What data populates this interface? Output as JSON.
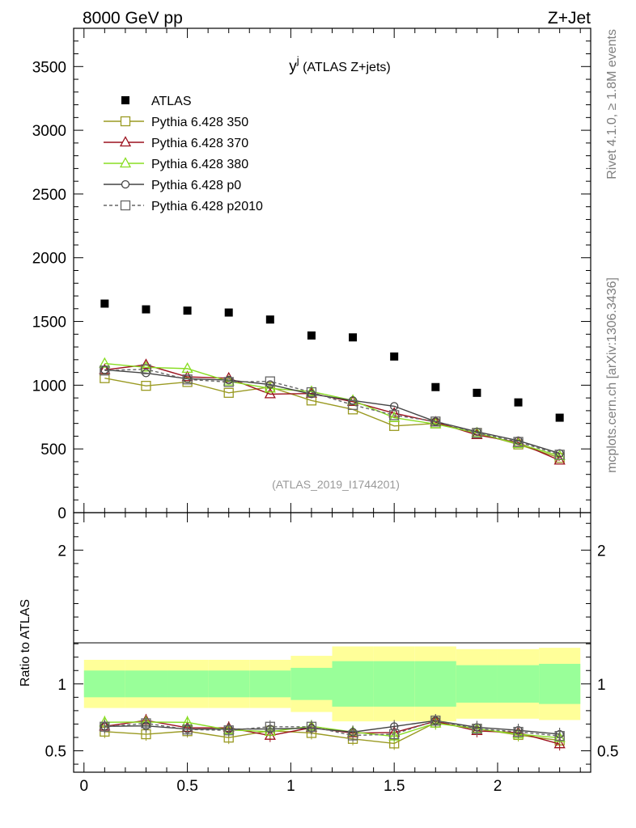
{
  "header": {
    "left": "8000 GeV pp",
    "right": "Z+Jet"
  },
  "side_labels": {
    "rivet": "Rivet 4.1.0, ≥ 1.8M events",
    "mcplots": "mcplots.cern.ch [arXiv:1306.3436]"
  },
  "chart_data": {
    "type": "scatter",
    "title_main": "y",
    "title_sup": "j",
    "title_suffix": " (ATLAS Z+jets)",
    "watermark": "(ATLAS_2019_I1744201)",
    "xlim": [
      -0.05,
      2.45
    ],
    "ylim": [
      0,
      3800
    ],
    "ratio_ylim": [
      0.34,
      2.28
    ],
    "ratio_ylabel": "Ratio to ATLAS",
    "x_ticks": [
      {
        "v": 0,
        "label": "0"
      },
      {
        "v": 0.5,
        "label": "0.5"
      },
      {
        "v": 1,
        "label": "1"
      },
      {
        "v": 1.5,
        "label": "1.5"
      },
      {
        "v": 2,
        "label": "2"
      }
    ],
    "y_ticks": [
      {
        "v": 0,
        "label": "0"
      },
      {
        "v": 500,
        "label": "500"
      },
      {
        "v": 1000,
        "label": "1000"
      },
      {
        "v": 1500,
        "label": "1500"
      },
      {
        "v": 2000,
        "label": "2000"
      },
      {
        "v": 2500,
        "label": "2500"
      },
      {
        "v": 3000,
        "label": "3000"
      },
      {
        "v": 3500,
        "label": "3500"
      }
    ],
    "ratio_ticks": [
      {
        "v": 0.5,
        "label": "0.5"
      },
      {
        "v": 1,
        "label": "1"
      },
      {
        "v": 2,
        "label": "2"
      }
    ],
    "x": [
      0.1,
      0.3,
      0.5,
      0.7,
      0.9,
      1.1,
      1.3,
      1.5,
      1.7,
      1.9,
      2.1,
      2.3
    ],
    "bin_edges": [
      0,
      0.2,
      0.4,
      0.6,
      0.8,
      1.0,
      1.2,
      1.4,
      1.6,
      1.8,
      2.0,
      2.2,
      2.4
    ],
    "data": {
      "name": "ATLAS",
      "values": [
        1640,
        1595,
        1585,
        1570,
        1515,
        1390,
        1375,
        1225,
        985,
        940,
        865,
        745
      ]
    },
    "band_inner": [
      0.1,
      0.1,
      0.1,
      0.1,
      0.1,
      0.12,
      0.17,
      0.17,
      0.17,
      0.14,
      0.14,
      0.15
    ],
    "band_outer": [
      0.18,
      0.18,
      0.18,
      0.18,
      0.18,
      0.21,
      0.28,
      0.28,
      0.28,
      0.26,
      0.26,
      0.27
    ],
    "series": [
      {
        "name": "Pythia 6.428 350",
        "color": "#9a9a22",
        "marker": "square",
        "dash": false,
        "values": [
          1055,
          995,
          1025,
          940,
          985,
          880,
          810,
          680,
          700,
          625,
          535,
          430
        ]
      },
      {
        "name": "Pythia 6.428 370",
        "color": "#9b111e",
        "marker": "triangle",
        "dash": false,
        "values": [
          1120,
          1160,
          1065,
          1055,
          930,
          935,
          870,
          780,
          710,
          610,
          550,
          410
        ]
      },
      {
        "name": "Pythia 6.428 380",
        "color": "#88dd22",
        "marker": "triangle",
        "dash": false,
        "values": [
          1170,
          1140,
          1130,
          1030,
          975,
          950,
          880,
          745,
          695,
          625,
          540,
          445
        ]
      },
      {
        "name": "Pythia 6.428 p0",
        "color": "#444444",
        "marker": "circle",
        "dash": false,
        "values": [
          1120,
          1095,
          1050,
          1040,
          1005,
          930,
          880,
          835,
          715,
          635,
          565,
          465
        ]
      },
      {
        "name": "Pythia 6.428 p2010",
        "color": "#666666",
        "marker": "square",
        "dash": true,
        "values": [
          1115,
          1125,
          1045,
          1025,
          1030,
          945,
          845,
          765,
          715,
          625,
          555,
          455
        ]
      }
    ]
  },
  "colors": {
    "band_inner": "#99ff99",
    "band_outer": "#ffff99",
    "data": "#000000",
    "axis": "#000000",
    "side_label": "#7f7f7f"
  }
}
